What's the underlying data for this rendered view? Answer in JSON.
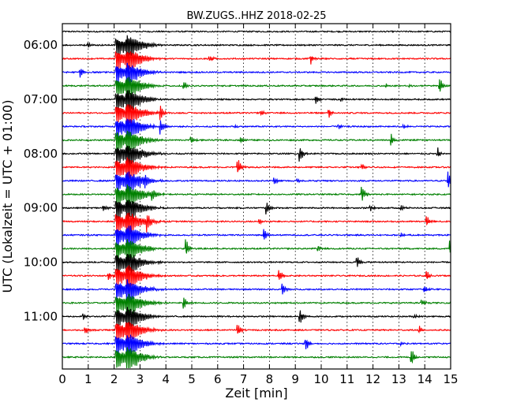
{
  "chart_data": {
    "type": "line",
    "title": "BW.ZUGS..HHZ 2018-02-25",
    "xlabel": "Zeit  [min]",
    "ylabel": "UTC (Lokalzeit = UTC + 01:00)",
    "xlim": [
      0,
      15
    ],
    "x_ticks": [
      "0",
      "1",
      "2",
      "3",
      "4",
      "5",
      "6",
      "7",
      "8",
      "9",
      "10",
      "11",
      "12",
      "13",
      "14",
      "15"
    ],
    "y_ticks": [
      "06:00",
      "07:00",
      "08:00",
      "09:00",
      "10:00",
      "11:00"
    ],
    "grid": true,
    "trace_interval_min": 15,
    "trace_start": "05:45",
    "trace_end": "11:45",
    "trace_colors": [
      "#000000",
      "#ff0000",
      "#0000ff",
      "#008000"
    ],
    "traces": [
      {
        "start": "05:45",
        "color": "#000000",
        "events": []
      },
      {
        "start": "06:00",
        "color": "#000000",
        "events": [
          [
            1.0,
            0.25
          ],
          [
            2.1,
            1.0
          ],
          [
            2.5,
            1.0
          ]
        ]
      },
      {
        "start": "06:15",
        "color": "#ff0000",
        "events": [
          [
            2.1,
            1.0
          ],
          [
            2.5,
            1.0
          ],
          [
            5.7,
            0.3
          ],
          [
            9.6,
            0.4
          ]
        ]
      },
      {
        "start": "06:30",
        "color": "#0000ff",
        "events": [
          [
            0.7,
            0.5
          ],
          [
            2.1,
            1.0
          ],
          [
            2.5,
            1.0
          ]
        ]
      },
      {
        "start": "06:45",
        "color": "#008000",
        "events": [
          [
            2.1,
            1.0
          ],
          [
            2.5,
            1.0
          ],
          [
            4.7,
            0.4
          ],
          [
            12.5,
            0.2
          ],
          [
            13.4,
            0.2
          ],
          [
            14.6,
            0.7
          ]
        ]
      },
      {
        "start": "07:00",
        "color": "#000000",
        "events": [
          [
            2.1,
            1.0
          ],
          [
            2.5,
            1.0
          ],
          [
            9.8,
            0.4
          ],
          [
            10.8,
            0.2
          ]
        ]
      },
      {
        "start": "07:15",
        "color": "#ff0000",
        "events": [
          [
            2.1,
            1.0
          ],
          [
            2.5,
            1.0
          ],
          [
            3.8,
            0.6
          ],
          [
            7.7,
            0.3
          ],
          [
            10.3,
            0.4
          ]
        ]
      },
      {
        "start": "07:30",
        "color": "#0000ff",
        "events": [
          [
            2.1,
            1.0
          ],
          [
            2.5,
            1.0
          ],
          [
            3.8,
            0.6
          ],
          [
            6.7,
            0.2
          ],
          [
            10.7,
            0.2
          ],
          [
            13.2,
            0.2
          ]
        ]
      },
      {
        "start": "07:45",
        "color": "#008000",
        "events": [
          [
            2.1,
            1.0
          ],
          [
            2.5,
            1.0
          ],
          [
            5.0,
            0.3
          ],
          [
            6.9,
            0.3
          ],
          [
            12.7,
            0.6
          ]
        ]
      },
      {
        "start": "08:00",
        "color": "#000000",
        "events": [
          [
            2.1,
            1.0
          ],
          [
            2.5,
            1.0
          ],
          [
            9.2,
            0.7
          ],
          [
            14.5,
            0.5
          ]
        ]
      },
      {
        "start": "08:15",
        "color": "#ff0000",
        "events": [
          [
            2.1,
            1.0
          ],
          [
            2.5,
            1.0
          ],
          [
            6.8,
            0.7
          ],
          [
            11.6,
            0.3
          ]
        ]
      },
      {
        "start": "08:30",
        "color": "#0000ff",
        "events": [
          [
            2.1,
            1.0
          ],
          [
            2.5,
            1.0
          ],
          [
            3.2,
            0.5
          ],
          [
            8.2,
            0.3
          ],
          [
            9.1,
            0.2
          ],
          [
            14.9,
            0.8
          ]
        ]
      },
      {
        "start": "08:45",
        "color": "#008000",
        "events": [
          [
            2.1,
            1.0
          ],
          [
            2.5,
            1.0
          ],
          [
            3.5,
            0.4
          ],
          [
            11.6,
            0.7
          ]
        ]
      },
      {
        "start": "09:00",
        "color": "#000000",
        "events": [
          [
            1.6,
            0.3
          ],
          [
            2.1,
            1.0
          ],
          [
            2.5,
            1.0
          ],
          [
            7.9,
            0.7
          ],
          [
            11.9,
            0.3
          ],
          [
            13.1,
            0.3
          ]
        ]
      },
      {
        "start": "09:15",
        "color": "#ff0000",
        "events": [
          [
            2.1,
            1.0
          ],
          [
            2.5,
            1.0
          ],
          [
            3.3,
            0.6
          ],
          [
            7.6,
            0.3
          ],
          [
            14.1,
            0.4
          ]
        ]
      },
      {
        "start": "09:30",
        "color": "#0000ff",
        "events": [
          [
            2.1,
            1.0
          ],
          [
            2.5,
            1.0
          ],
          [
            7.8,
            0.6
          ],
          [
            13.1,
            0.2
          ]
        ]
      },
      {
        "start": "09:45",
        "color": "#008000",
        "events": [
          [
            2.1,
            1.0
          ],
          [
            2.5,
            1.0
          ],
          [
            4.8,
            0.7
          ],
          [
            9.9,
            0.3
          ],
          [
            15.0,
            0.7
          ]
        ]
      },
      {
        "start": "10:00",
        "color": "#000000",
        "events": [
          [
            2.1,
            1.0
          ],
          [
            2.5,
            1.0
          ],
          [
            11.4,
            0.6
          ]
        ]
      },
      {
        "start": "10:15",
        "color": "#ff0000",
        "events": [
          [
            1.8,
            0.4
          ],
          [
            2.1,
            1.0
          ],
          [
            2.5,
            1.0
          ],
          [
            8.4,
            0.6
          ],
          [
            14.1,
            0.4
          ]
        ]
      },
      {
        "start": "10:30",
        "color": "#0000ff",
        "events": [
          [
            2.1,
            1.0
          ],
          [
            2.5,
            1.0
          ],
          [
            8.5,
            0.7
          ],
          [
            14.0,
            0.4
          ]
        ]
      },
      {
        "start": "10:45",
        "color": "#008000",
        "events": [
          [
            2.1,
            1.0
          ],
          [
            2.5,
            1.0
          ],
          [
            4.7,
            0.6
          ],
          [
            13.9,
            0.3
          ]
        ]
      },
      {
        "start": "11:00",
        "color": "#000000",
        "events": [
          [
            0.8,
            0.3
          ],
          [
            2.1,
            1.0
          ],
          [
            2.5,
            1.0
          ],
          [
            9.2,
            0.7
          ],
          [
            13.6,
            0.2
          ]
        ]
      },
      {
        "start": "11:15",
        "color": "#ff0000",
        "events": [
          [
            0.9,
            0.3
          ],
          [
            2.1,
            1.0
          ],
          [
            2.5,
            1.0
          ],
          [
            6.8,
            0.6
          ],
          [
            13.8,
            0.3
          ]
        ]
      },
      {
        "start": "11:30",
        "color": "#0000ff",
        "events": [
          [
            2.1,
            1.0
          ],
          [
            2.5,
            1.0
          ],
          [
            9.4,
            0.7
          ],
          [
            13.1,
            0.2
          ]
        ]
      },
      {
        "start": "11:45",
        "color": "#008000",
        "events": [
          [
            2.1,
            1.0
          ],
          [
            2.5,
            1.0
          ],
          [
            13.5,
            0.7
          ]
        ]
      }
    ]
  }
}
